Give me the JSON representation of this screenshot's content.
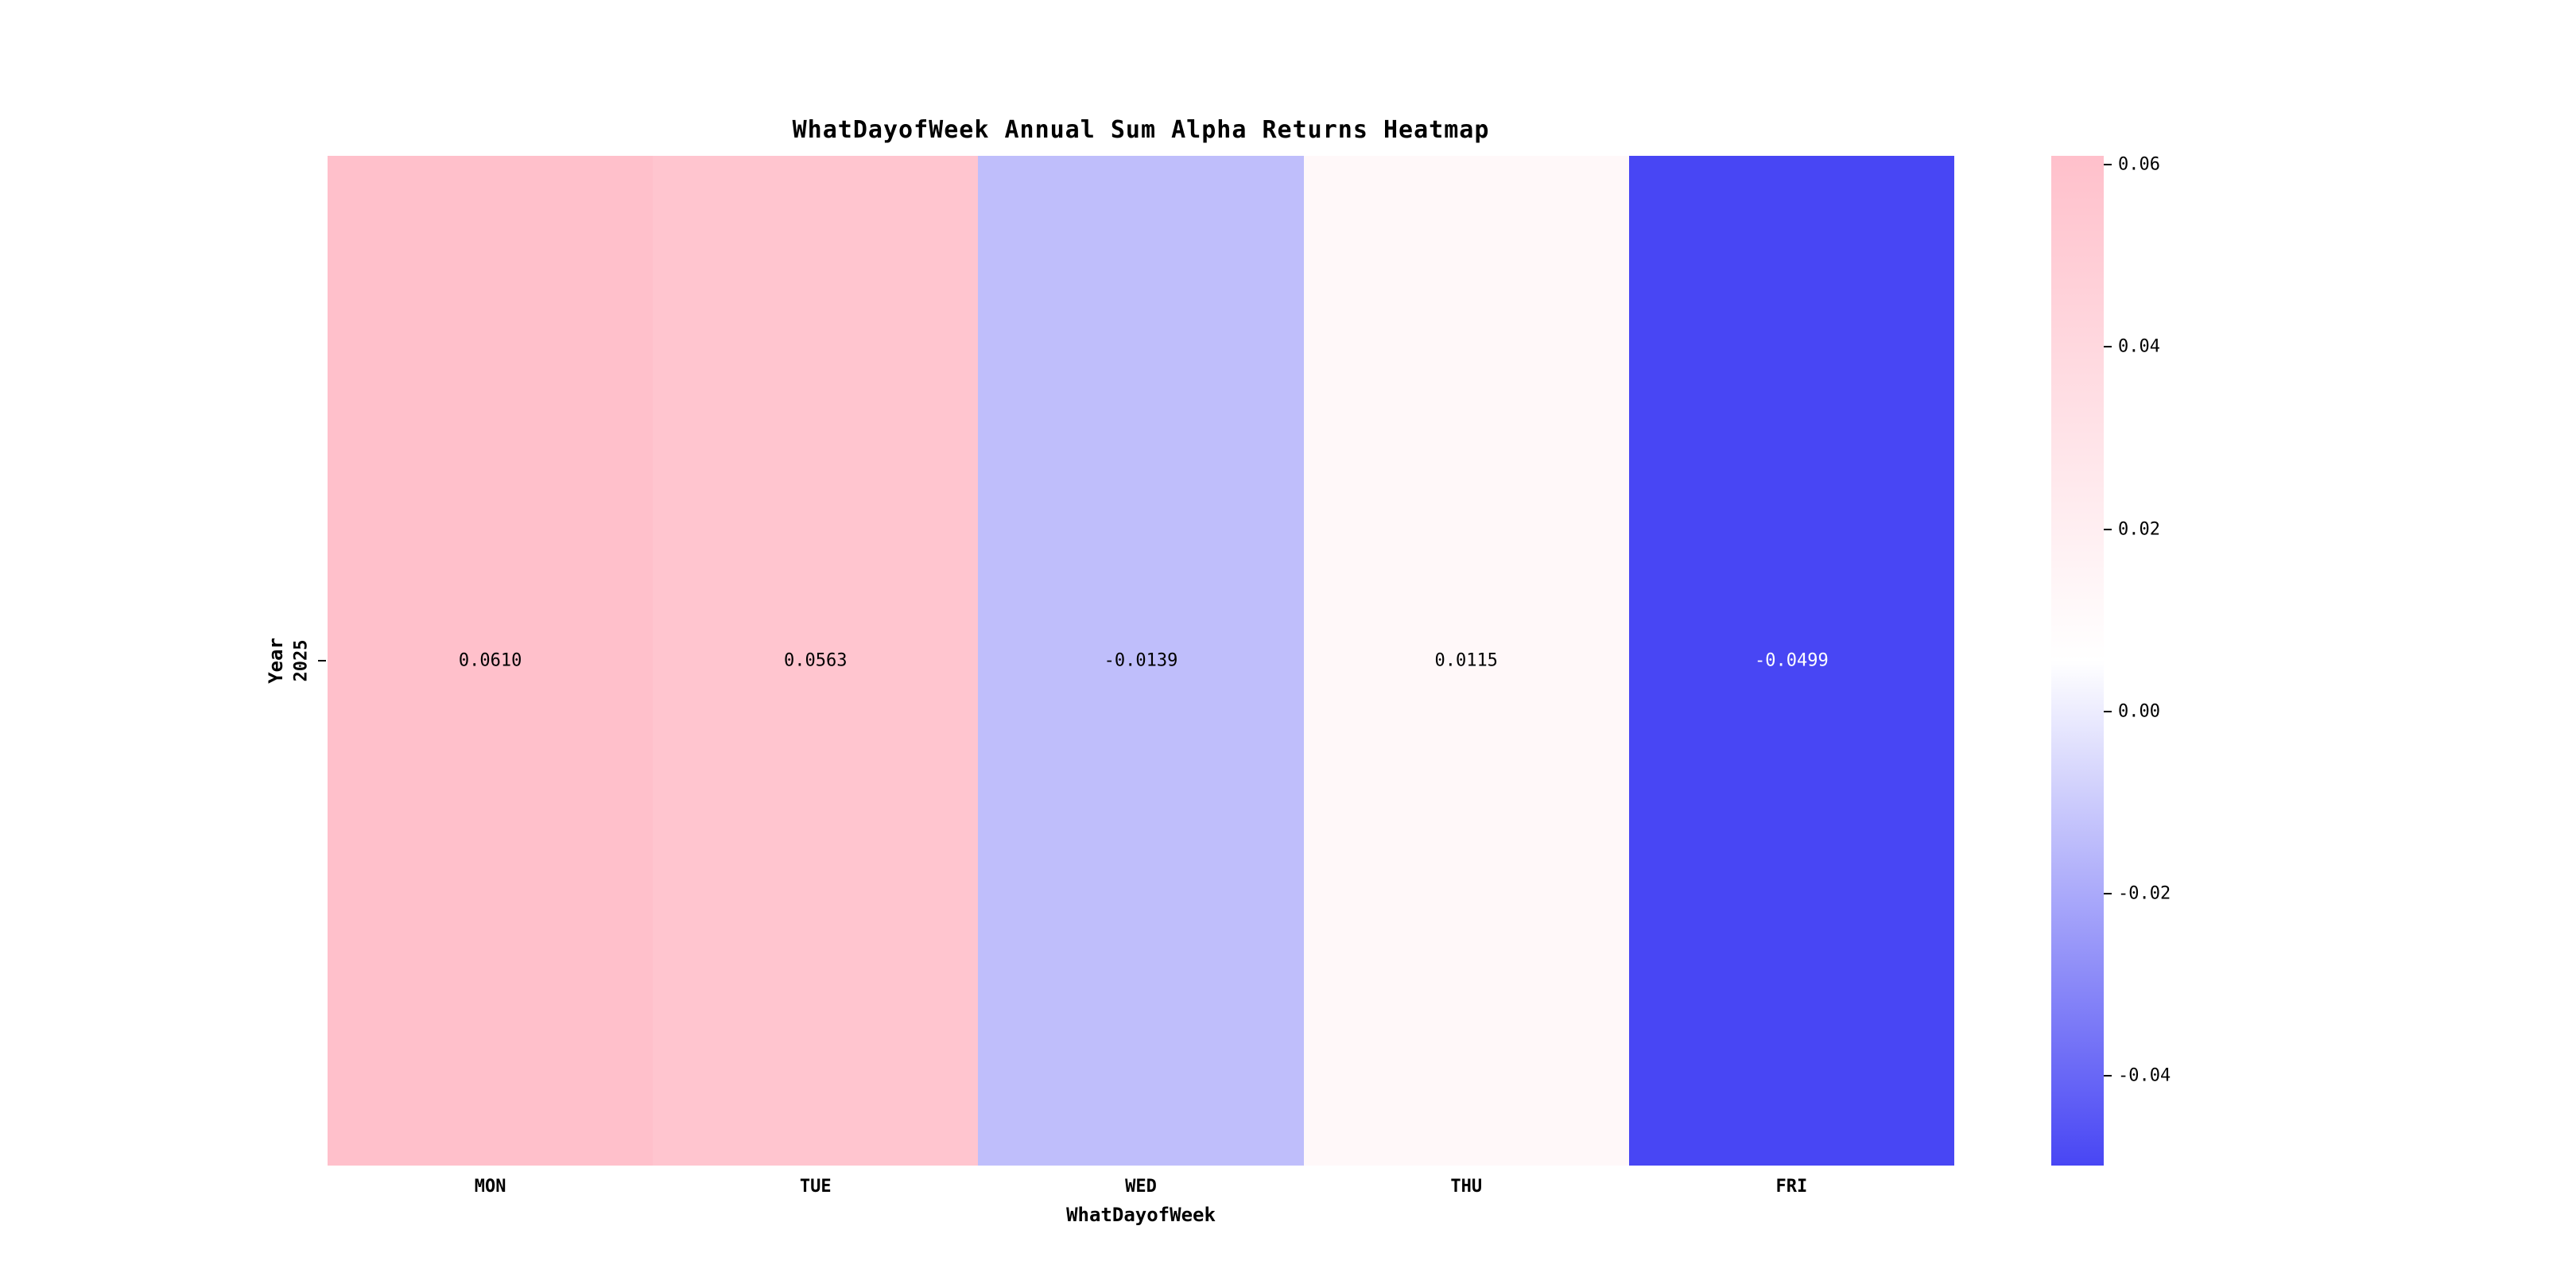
{
  "chart_data": {
    "type": "heatmap",
    "title": "WhatDayofWeek Annual Sum Alpha Returns Heatmap",
    "xlabel": "WhatDayofWeek",
    "ylabel": "Year",
    "x_categories": [
      "MON",
      "TUE",
      "WED",
      "THU",
      "FRI"
    ],
    "y_categories": [
      "2025"
    ],
    "values": [
      [
        0.061,
        0.0563,
        -0.0139,
        0.0115,
        -0.0499
      ]
    ],
    "cell_labels": [
      [
        "0.0610",
        "0.0563",
        "-0.0139",
        "0.0115",
        "-0.0499"
      ]
    ],
    "vmin": -0.0499,
    "vmax": 0.061,
    "grid": false,
    "legend_position": "colorbar-right",
    "colormap": {
      "negative": "#4846f4",
      "center": "#ffffff",
      "positive": "#ffc0cb"
    },
    "colorbar": {
      "tick_values": [
        0.06,
        0.04,
        0.02,
        0.0,
        -0.02,
        -0.04
      ],
      "tick_labels": [
        "0.06",
        "0.04",
        "0.02",
        "0.00",
        "-0.02",
        "-0.04"
      ]
    },
    "text_colors": {
      "on_light": "#000000",
      "on_dark": "#ffffff"
    },
    "background": "#ffffff"
  }
}
